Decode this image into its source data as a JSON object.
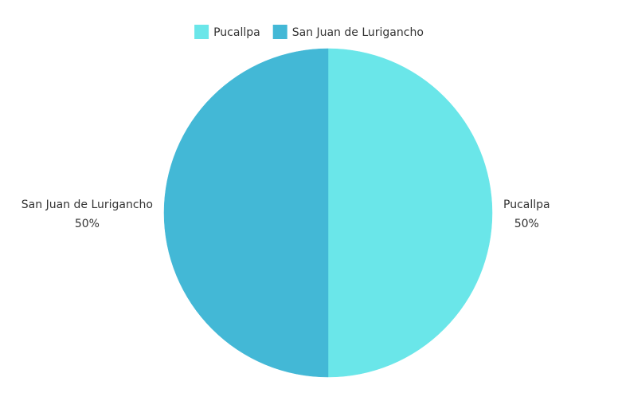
{
  "chart_data": {
    "type": "pie",
    "title": "",
    "legend_position": "top-center",
    "slices": [
      {
        "label": "Pucallpa",
        "value": 50,
        "percent_label": "50%",
        "color": "#6ae6e9"
      },
      {
        "label": "San Juan de Lurigancho",
        "value": 50,
        "percent_label": "50%",
        "color": "#43b8d6"
      }
    ]
  }
}
